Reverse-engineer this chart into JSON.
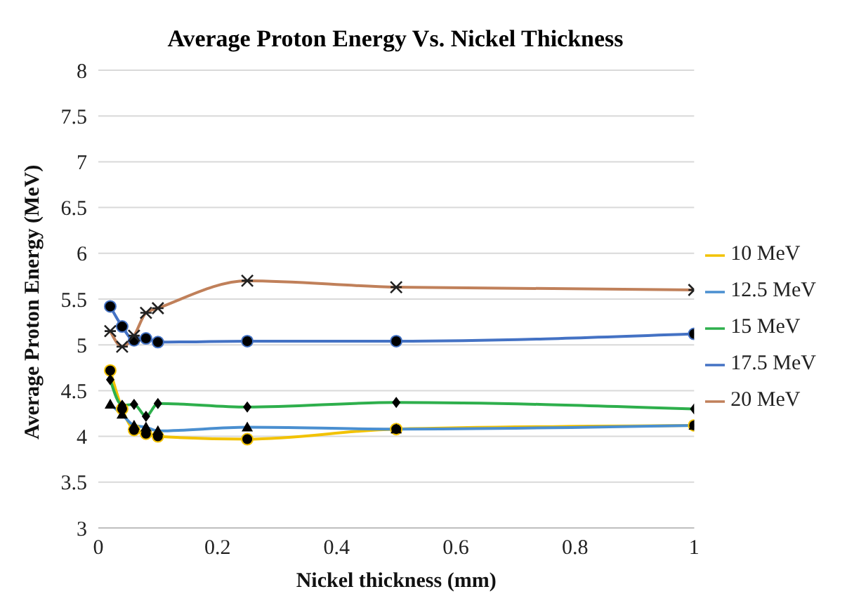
{
  "chart_data": {
    "type": "line",
    "title": "Average Proton Energy Vs. Nickel Thickness",
    "xlabel": "Nickel thickness (mm)",
    "ylabel": "Average Proton Energy (MeV)",
    "x": [
      0.02,
      0.04,
      0.06,
      0.08,
      0.1,
      0.25,
      0.5,
      1
    ],
    "series": [
      {
        "name": "10 MeV",
        "color": "#f2c200",
        "marker": "circle",
        "values": [
          4.72,
          4.3,
          4.07,
          4.03,
          4.0,
          3.97,
          4.08,
          4.12
        ]
      },
      {
        "name": "12.5 MeV",
        "color": "#4a8fd0",
        "marker": "triangle",
        "values": [
          4.35,
          4.24,
          4.12,
          4.1,
          4.06,
          4.1,
          4.08,
          4.12
        ]
      },
      {
        "name": "15 MeV",
        "color": "#2eaf4c",
        "marker": "diamond",
        "values": [
          4.62,
          4.34,
          4.35,
          4.22,
          4.36,
          4.32,
          4.37,
          4.3
        ]
      },
      {
        "name": "17.5 MeV",
        "color": "#4472c4",
        "marker": "circle",
        "values": [
          5.42,
          5.2,
          5.05,
          5.07,
          5.03,
          5.04,
          5.04,
          5.12
        ]
      },
      {
        "name": "20 MeV",
        "color": "#c0805a",
        "marker": "cross",
        "values": [
          5.15,
          4.98,
          5.1,
          5.35,
          5.4,
          5.7,
          5.63,
          5.6
        ]
      }
    ],
    "xlim": [
      0,
      1
    ],
    "xticks": [
      0,
      0.2,
      0.4,
      0.6,
      0.8,
      1
    ],
    "ylim": [
      3,
      8
    ],
    "yticks": [
      3,
      3.5,
      4,
      4.5,
      5,
      5.5,
      6,
      6.5,
      7,
      7.5,
      8
    ],
    "grid": "y",
    "legend": "right"
  }
}
